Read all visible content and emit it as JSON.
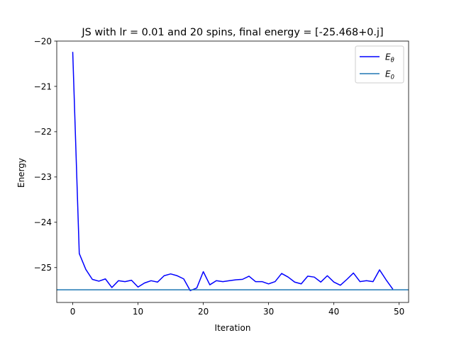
{
  "chart_data": {
    "type": "line",
    "title": "JS with lr = 0.01 and 20 spins, final energy = [-25.468+0.j]",
    "xlabel": "Iteration",
    "ylabel": "Energy",
    "xlim": [
      -2.45,
      51.45
    ],
    "ylim": [
      -25.77,
      -20.0
    ],
    "x_ticks": [
      0,
      10,
      20,
      30,
      40,
      50
    ],
    "y_ticks": [
      -20,
      -21,
      -22,
      -23,
      -24,
      -25
    ],
    "x_tick_labels": [
      "0",
      "10",
      "20",
      "30",
      "40",
      "50"
    ],
    "y_tick_labels": [
      "−20",
      "−21",
      "−22",
      "−23",
      "−24",
      "−25"
    ],
    "grid": false,
    "legend_position": "top-right",
    "series": [
      {
        "name": "E_θ",
        "legend_base": "E",
        "legend_sub": "θ",
        "kind": "line",
        "color": "#0000ff",
        "x": [
          0,
          1,
          2,
          3,
          4,
          5,
          6,
          7,
          8,
          9,
          10,
          11,
          12,
          13,
          14,
          15,
          16,
          17,
          18,
          19,
          20,
          21,
          22,
          23,
          24,
          25,
          26,
          27,
          28,
          29,
          30,
          31,
          32,
          33,
          34,
          35,
          36,
          37,
          38,
          39,
          40,
          41,
          42,
          43,
          44,
          45,
          46,
          47,
          48,
          49
        ],
        "y": [
          -20.25,
          -24.69,
          -25.04,
          -25.26,
          -25.3,
          -25.25,
          -25.44,
          -25.29,
          -25.31,
          -25.28,
          -25.43,
          -25.34,
          -25.29,
          -25.32,
          -25.18,
          -25.14,
          -25.18,
          -25.25,
          -25.51,
          -25.45,
          -25.09,
          -25.38,
          -25.29,
          -25.31,
          -25.29,
          -25.27,
          -25.26,
          -25.19,
          -25.31,
          -25.31,
          -25.36,
          -25.31,
          -25.13,
          -25.21,
          -25.32,
          -25.36,
          -25.19,
          -25.21,
          -25.32,
          -25.18,
          -25.32,
          -25.39,
          -25.26,
          -25.12,
          -25.31,
          -25.29,
          -25.31,
          -25.05,
          -25.27,
          -25.47
        ]
      },
      {
        "name": "E_0",
        "legend_base": "E",
        "legend_sub": "0",
        "kind": "hline",
        "color": "#1f77b4",
        "y": -25.49
      }
    ]
  }
}
